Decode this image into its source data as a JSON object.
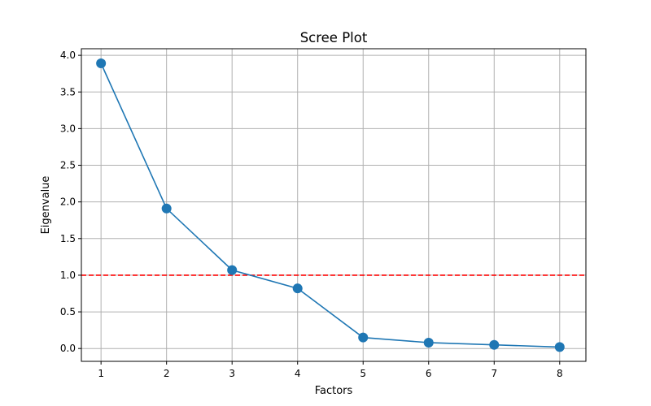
{
  "chart_data": {
    "type": "line",
    "title": "Scree Plot",
    "xlabel": "Factors",
    "ylabel": "Eigenvalue",
    "x": [
      1,
      2,
      3,
      4,
      5,
      6,
      7,
      8
    ],
    "series": [
      {
        "values": [
          3.89,
          1.91,
          1.07,
          0.82,
          0.15,
          0.08,
          0.05,
          0.02
        ],
        "color": "#1f77b4",
        "marker": "circle"
      }
    ],
    "reference_lines": [
      {
        "orientation": "horizontal",
        "y": 1.0,
        "color": "#ff0000",
        "style": "dashed"
      }
    ],
    "xticks": [
      "1",
      "2",
      "3",
      "4",
      "5",
      "6",
      "7",
      "8"
    ],
    "yticks": [
      "0.0",
      "0.5",
      "1.0",
      "1.5",
      "2.0",
      "2.5",
      "3.0",
      "3.5",
      "4.0"
    ],
    "xlim": [
      0.7,
      8.4
    ],
    "ylim": [
      -0.175,
      4.09
    ],
    "grid": true
  }
}
